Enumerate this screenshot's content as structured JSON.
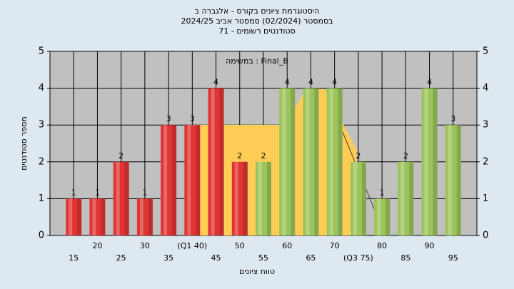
{
  "chart_data": {
    "type": "bar",
    "title": [
      "היסטוגרמת ציונים בקורס - אלגברה ב",
      "בסמסטר  (02/2024)  סמסטר אביב 2024/25",
      "סטודנטים רשומים - 71"
    ],
    "annotation": "במשימה : Final_B",
    "x_label": "טווח ציונים",
    "y_label": "מספר סטודנטים",
    "categories": [
      "15",
      "20",
      "25",
      "30",
      "35",
      "(Q1 40)",
      "45",
      "50",
      "55",
      "60",
      "65",
      "70",
      "(Q3 75)",
      "80",
      "85",
      "90",
      "95"
    ],
    "values": [
      1,
      1,
      2,
      1,
      3,
      3,
      4,
      2,
      2,
      4,
      4,
      4,
      2,
      1,
      2,
      4,
      3
    ],
    "colors": [
      "#e03434",
      "#e03434",
      "#e03434",
      "#e03434",
      "#e03434",
      "#e03434",
      "#e03434",
      "#e03434",
      "#9cc45a",
      "#9cc45a",
      "#9cc45a",
      "#9cc45a",
      "#9cc45a",
      "#9cc45a",
      "#9cc45a",
      "#9cc45a",
      "#9cc45a"
    ],
    "ylim": [
      0,
      5
    ],
    "yticks": [
      0,
      1,
      2,
      3,
      4,
      5
    ],
    "grid": true
  }
}
